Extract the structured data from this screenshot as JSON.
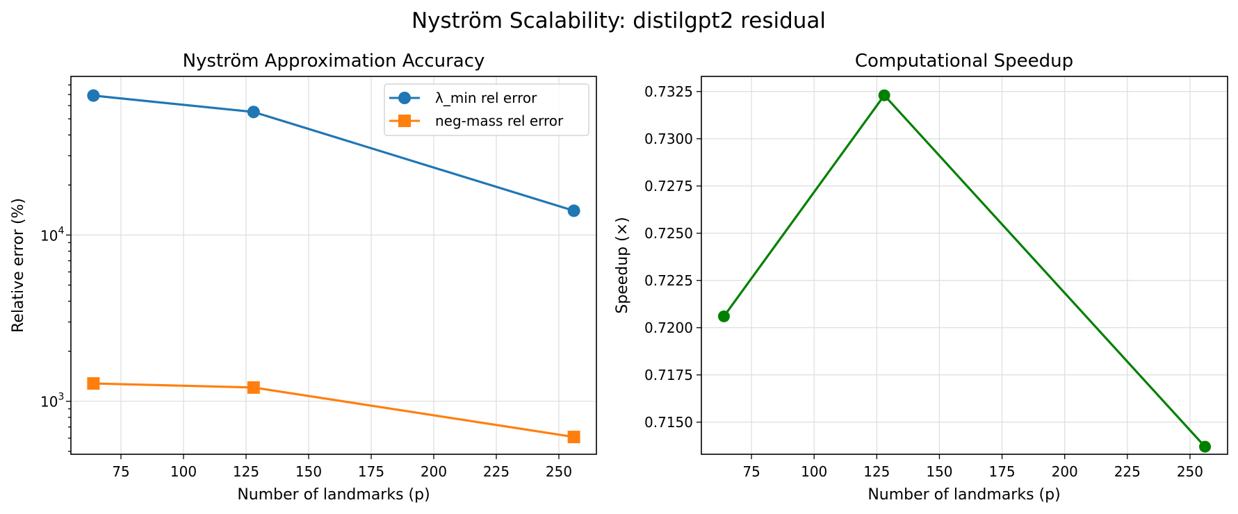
{
  "figure_title": "Nyström Scalability: distilgpt2 residual",
  "chart_data": [
    {
      "type": "line",
      "title": "Nyström Approximation Accuracy",
      "xlabel": "Number of landmarks (p)",
      "ylabel": "Relative error (%)",
      "yscale": "log",
      "x": [
        64,
        128,
        256
      ],
      "xlim": [
        55,
        265
      ],
      "ylim": [
        480,
        90000
      ],
      "xticks": [
        75,
        100,
        125,
        150,
        175,
        200,
        225,
        250
      ],
      "yticks": [
        {
          "value": 1000,
          "base": "10",
          "exp": "3"
        },
        {
          "value": 10000,
          "base": "10",
          "exp": "4"
        }
      ],
      "grid": true,
      "legend_position": "top-right",
      "series": [
        {
          "name": "λ_min rel error",
          "values": [
            69000,
            55000,
            14000
          ],
          "color": "#1f77b4",
          "marker": "circle"
        },
        {
          "name": "neg-mass rel error",
          "values": [
            1280,
            1210,
            610
          ],
          "color": "#ff7f0e",
          "marker": "square"
        }
      ]
    },
    {
      "type": "line",
      "title": "Computational Speedup",
      "xlabel": "Number of landmarks (p)",
      "ylabel": "Speedup (×)",
      "x": [
        64,
        128,
        256
      ],
      "xlim": [
        55,
        265
      ],
      "ylim": [
        0.7133,
        0.7333
      ],
      "xticks": [
        75,
        100,
        125,
        150,
        175,
        200,
        225,
        250
      ],
      "yticks": [
        "0.7150",
        "0.7175",
        "0.7200",
        "0.7225",
        "0.7250",
        "0.7275",
        "0.7300",
        "0.7325"
      ],
      "grid": true,
      "series": [
        {
          "values": [
            0.7206,
            0.7323,
            0.7137
          ],
          "color": "#008000",
          "marker": "circle"
        }
      ]
    }
  ]
}
